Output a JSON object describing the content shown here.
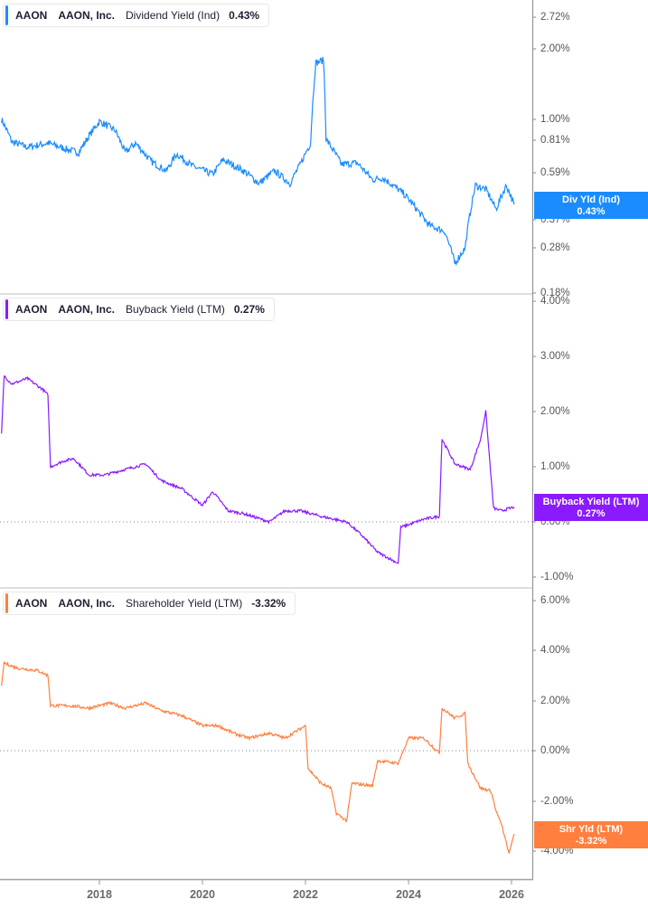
{
  "panels": [
    {
      "ticker": "AAON",
      "company": "AAON, Inc.",
      "metric": "Dividend Yield (Ind)",
      "value": "0.43%",
      "flag_label": "Div Yld (Ind)",
      "flag_value": "0.43%",
      "color": "#1a8cff",
      "yticks": [
        "2.72%",
        "2.00%",
        "1.00%",
        "0.81%",
        "0.59%",
        "0.37%",
        "0.28%",
        "0.18%"
      ]
    },
    {
      "ticker": "AAON",
      "company": "AAON, Inc.",
      "metric": "Buyback Yield (LTM)",
      "value": "0.27%",
      "flag_label": "Buyback Yield (LTM)",
      "flag_value": "0.27%",
      "color": "#8a1aff",
      "yticks": [
        "4.00%",
        "3.00%",
        "2.00%",
        "1.00%",
        "0.00%",
        "-1.00%"
      ]
    },
    {
      "ticker": "AAON",
      "company": "AAON, Inc.",
      "metric": "Shareholder Yield (LTM)",
      "value": "-3.32%",
      "flag_label": "Shr Yld (LTM)",
      "flag_value": "-3.32%",
      "color": "#ff7f3f",
      "yticks": [
        "6.00%",
        "4.00%",
        "2.00%",
        "0.00%",
        "-2.00%",
        "-4.00%"
      ]
    }
  ],
  "xaxis": {
    "ticks": [
      "2018",
      "2020",
      "2022",
      "2024",
      "2026"
    ]
  },
  "chart_data": [
    {
      "type": "line",
      "title": "AAON AAON, Inc. Dividend Yield (Ind) 0.43%",
      "ylabel": "Dividend Yield (Ind)",
      "yscale": "log",
      "ylim": [
        0.18,
        2.9
      ],
      "ytick_labels": [
        "2.72%",
        "2.00%",
        "1.00%",
        "0.81%",
        "0.59%",
        "0.37%",
        "0.28%",
        "0.18%"
      ],
      "x": [
        2016.1,
        2016.3,
        2016.6,
        2017.0,
        2017.4,
        2017.6,
        2018.0,
        2018.3,
        2018.5,
        2018.7,
        2019.0,
        2019.3,
        2019.5,
        2019.8,
        2020.2,
        2020.4,
        2020.8,
        2021.1,
        2021.4,
        2021.7,
        2021.9,
        2022.1,
        2022.2,
        2022.35,
        2022.4,
        2022.7,
        2023.0,
        2023.3,
        2023.5,
        2023.9,
        2024.2,
        2024.4,
        2024.7,
        2024.9,
        2025.1,
        2025.3,
        2025.5,
        2025.7,
        2025.9,
        2026.05
      ],
      "values": [
        1.0,
        0.8,
        0.76,
        0.79,
        0.74,
        0.72,
        0.98,
        0.9,
        0.72,
        0.79,
        0.66,
        0.6,
        0.71,
        0.63,
        0.58,
        0.67,
        0.6,
        0.53,
        0.6,
        0.53,
        0.64,
        0.79,
        1.75,
        1.8,
        0.82,
        0.64,
        0.65,
        0.55,
        0.56,
        0.48,
        0.4,
        0.35,
        0.33,
        0.24,
        0.28,
        0.52,
        0.5,
        0.41,
        0.52,
        0.43
      ],
      "last_value": 0.43
    },
    {
      "type": "line",
      "title": "AAON AAON, Inc. Buyback Yield (LTM) 0.27%",
      "ylabel": "Buyback Yield (LTM)",
      "ylim": [
        -1.1,
        4.0
      ],
      "ytick_labels": [
        "4.00%",
        "3.00%",
        "2.00%",
        "1.00%",
        "0.00%",
        "-1.00%"
      ],
      "x": [
        2016.1,
        2016.15,
        2016.3,
        2016.6,
        2016.9,
        2017.0,
        2017.05,
        2017.3,
        2017.5,
        2017.8,
        2018.1,
        2018.5,
        2018.9,
        2019.2,
        2019.6,
        2020.0,
        2020.2,
        2020.5,
        2020.8,
        2021.3,
        2021.6,
        2021.9,
        2022.3,
        2022.8,
        2023.1,
        2023.4,
        2023.8,
        2023.85,
        2024.3,
        2024.6,
        2024.65,
        2024.9,
        2025.2,
        2025.4,
        2025.5,
        2025.65,
        2025.8,
        2026.05
      ],
      "values": [
        1.6,
        2.65,
        2.5,
        2.6,
        2.4,
        2.3,
        1.0,
        1.1,
        1.15,
        0.85,
        0.85,
        0.95,
        1.05,
        0.75,
        0.6,
        0.3,
        0.55,
        0.2,
        0.15,
        0.0,
        0.2,
        0.2,
        0.1,
        0.0,
        -0.25,
        -0.55,
        -0.75,
        -0.1,
        0.05,
        0.1,
        1.5,
        1.05,
        0.95,
        1.5,
        2.0,
        0.25,
        0.2,
        0.27
      ],
      "last_value": 0.27
    },
    {
      "type": "line",
      "title": "AAON AAON, Inc. Shareholder Yield (LTM) -3.32%",
      "ylabel": "Shareholder Yield (LTM)",
      "ylim": [
        -4.5,
        6.2
      ],
      "ytick_labels": [
        "6.00%",
        "4.00%",
        "2.00%",
        "0.00%",
        "-2.00%",
        "-4.00%"
      ],
      "x": [
        2016.1,
        2016.15,
        2016.4,
        2016.8,
        2017.0,
        2017.05,
        2017.4,
        2017.8,
        2018.2,
        2018.5,
        2018.9,
        2019.2,
        2019.6,
        2020.0,
        2020.3,
        2020.6,
        2020.9,
        2021.3,
        2021.6,
        2022.0,
        2022.05,
        2022.3,
        2022.5,
        2022.6,
        2022.8,
        2022.9,
        2023.3,
        2023.4,
        2023.8,
        2024.0,
        2024.3,
        2024.6,
        2024.65,
        2024.9,
        2025.1,
        2025.15,
        2025.4,
        2025.6,
        2025.7,
        2025.8,
        2025.95,
        2026.05
      ],
      "values": [
        2.6,
        3.5,
        3.3,
        3.2,
        3.0,
        1.8,
        1.8,
        1.7,
        1.9,
        1.7,
        1.9,
        1.6,
        1.4,
        1.0,
        1.0,
        0.7,
        0.5,
        0.7,
        0.5,
        1.0,
        -0.7,
        -1.3,
        -1.5,
        -2.5,
        -2.8,
        -1.3,
        -1.4,
        -0.4,
        -0.5,
        0.5,
        0.5,
        -0.1,
        1.7,
        1.3,
        1.5,
        -0.5,
        -1.5,
        -1.6,
        -2.4,
        -2.9,
        -4.1,
        -3.32
      ],
      "last_value": -3.32
    }
  ]
}
